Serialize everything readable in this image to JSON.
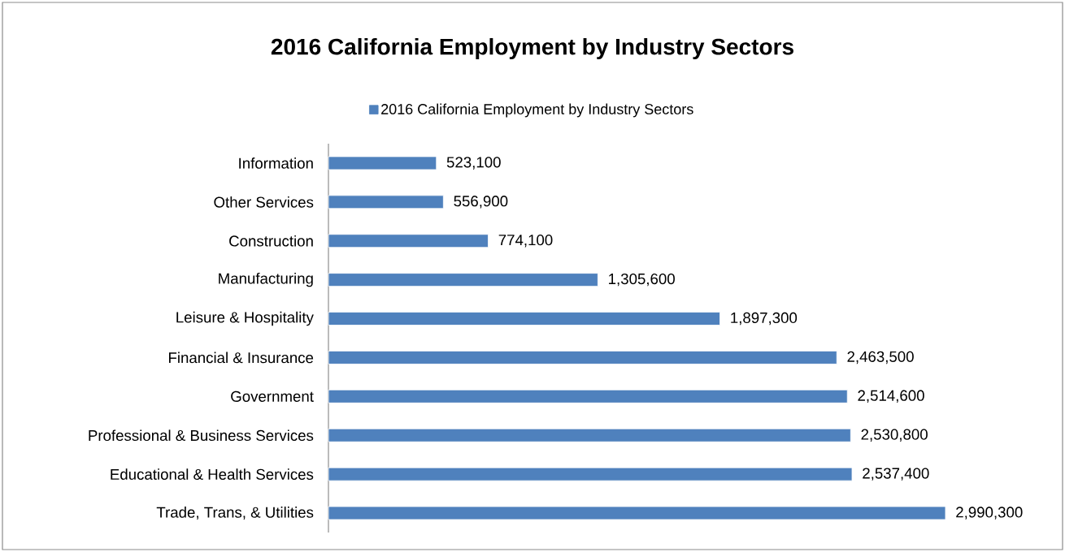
{
  "chart_data": {
    "type": "bar",
    "orientation": "horizontal",
    "title": "2016 California Employment by Industry Sectors",
    "categories": [
      "Information",
      "Other Services",
      "Construction",
      "Manufacturing",
      "Leisure & Hospitality",
      "Financial & Insurance",
      "Government",
      "Professional & Business Services",
      "Educational & Health Services",
      "Trade, Trans, & Utilities"
    ],
    "series": [
      {
        "name": "2016 California Employment by Industry Sectors",
        "color": "#4f81bd",
        "values": [
          523100,
          556900,
          774100,
          1305600,
          1897300,
          2463500,
          2514600,
          2530800,
          2537400,
          2990300
        ],
        "value_labels": [
          "523,100",
          "556,900",
          "774,100",
          "1,305,600",
          "1,897,300",
          "2,463,500",
          "2,514,600",
          "2,530,800",
          "2,537,400",
          "2,990,300"
        ]
      }
    ],
    "tick_labels": "y",
    "legend": "top"
  }
}
